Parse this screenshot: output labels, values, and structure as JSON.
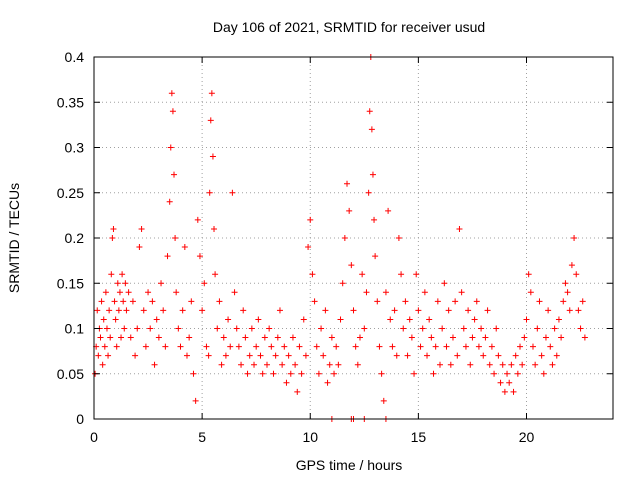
{
  "chart_data": {
    "type": "scatter",
    "title": "Day 106 of 2021, SRMTID for receiver usud",
    "xlabel": "GPS time / hours",
    "ylabel": "SRMTID / TECUs",
    "xlim": [
      0,
      24
    ],
    "ylim": [
      0,
      0.4
    ],
    "xticks": [
      0,
      5,
      10,
      15,
      20
    ],
    "xtick_labels": [
      "0",
      "5",
      "10",
      "15",
      "20"
    ],
    "yticks": [
      0,
      0.05,
      0.1,
      0.15,
      0.2,
      0.25,
      0.3,
      0.35,
      0.4
    ],
    "ytick_labels": [
      "0",
      "0.05",
      "0.1",
      "0.15",
      "0.2",
      "0.25",
      "0.3",
      "0.35",
      "0.4"
    ],
    "grid": true,
    "marker": "plus",
    "color": "#ff0000",
    "series": [
      {
        "name": "SRMTID",
        "x": [
          0.05,
          0.1,
          0.15,
          0.2,
          0.25,
          0.3,
          0.35,
          0.4,
          0.45,
          0.5,
          0.55,
          0.6,
          0.65,
          0.7,
          0.75,
          0.8,
          0.85,
          0.9,
          0.95,
          1.0,
          1.05,
          1.1,
          1.15,
          1.2,
          1.25,
          1.3,
          1.35,
          1.4,
          1.45,
          1.5,
          1.6,
          1.7,
          1.8,
          1.9,
          2.0,
          2.1,
          2.2,
          2.3,
          2.4,
          2.5,
          2.6,
          2.7,
          2.8,
          2.9,
          3.0,
          3.1,
          3.2,
          3.3,
          3.4,
          3.5,
          3.55,
          3.6,
          3.65,
          3.7,
          3.75,
          3.8,
          3.9,
          4.0,
          4.1,
          4.2,
          4.3,
          4.4,
          4.5,
          4.6,
          4.7,
          4.8,
          4.9,
          5.0,
          5.1,
          5.2,
          5.3,
          5.35,
          5.4,
          5.45,
          5.5,
          5.55,
          5.6,
          5.7,
          5.8,
          5.9,
          6.0,
          6.1,
          6.2,
          6.3,
          6.4,
          6.5,
          6.6,
          6.7,
          6.8,
          6.9,
          7.0,
          7.1,
          7.2,
          7.3,
          7.4,
          7.5,
          7.6,
          7.7,
          7.8,
          7.9,
          8.0,
          8.1,
          8.2,
          8.3,
          8.4,
          8.5,
          8.6,
          8.7,
          8.8,
          8.9,
          9.0,
          9.1,
          9.2,
          9.3,
          9.4,
          9.5,
          9.6,
          9.7,
          9.8,
          9.9,
          10.0,
          10.1,
          10.2,
          10.3,
          10.4,
          10.5,
          10.6,
          10.7,
          10.8,
          10.9,
          11.0,
          11.1,
          11.2,
          11.3,
          11.4,
          11.5,
          11.6,
          11.7,
          11.8,
          11.9,
          12.0,
          12.1,
          12.2,
          12.3,
          12.4,
          12.5,
          12.6,
          12.7,
          12.75,
          12.8,
          12.85,
          12.9,
          12.95,
          13.0,
          13.1,
          13.2,
          13.3,
          13.4,
          13.5,
          13.6,
          13.7,
          13.8,
          13.9,
          14.0,
          14.1,
          14.2,
          14.3,
          14.4,
          14.5,
          14.6,
          14.7,
          14.8,
          14.9,
          15.0,
          15.1,
          15.2,
          15.3,
          15.4,
          15.5,
          15.6,
          15.7,
          15.8,
          15.9,
          16.0,
          16.1,
          16.2,
          16.3,
          16.4,
          16.5,
          16.6,
          16.7,
          16.8,
          16.9,
          17.0,
          17.1,
          17.2,
          17.3,
          17.4,
          17.5,
          17.6,
          17.7,
          17.8,
          17.9,
          18.0,
          18.1,
          18.2,
          18.3,
          18.4,
          18.5,
          18.6,
          18.7,
          18.8,
          18.9,
          19.0,
          19.1,
          19.2,
          19.3,
          19.4,
          19.5,
          19.6,
          19.7,
          19.8,
          19.9,
          20.0,
          20.1,
          20.2,
          20.3,
          20.4,
          20.5,
          20.6,
          20.7,
          20.8,
          20.9,
          21.0,
          21.1,
          21.2,
          21.3,
          21.4,
          21.5,
          21.6,
          21.7,
          21.8,
          21.9,
          22.0,
          22.1,
          22.2,
          22.3,
          22.4,
          22.5,
          22.6,
          22.7,
          11.0,
          11.9,
          12.0,
          12.5,
          13.5
        ],
        "y": [
          0.05,
          0.08,
          0.12,
          0.07,
          0.1,
          0.09,
          0.13,
          0.06,
          0.11,
          0.08,
          0.14,
          0.1,
          0.07,
          0.12,
          0.09,
          0.16,
          0.2,
          0.21,
          0.13,
          0.11,
          0.08,
          0.15,
          0.12,
          0.14,
          0.09,
          0.16,
          0.13,
          0.1,
          0.15,
          0.12,
          0.14,
          0.09,
          0.13,
          0.07,
          0.1,
          0.19,
          0.21,
          0.12,
          0.08,
          0.14,
          0.1,
          0.13,
          0.06,
          0.11,
          0.09,
          0.15,
          0.12,
          0.08,
          0.18,
          0.24,
          0.3,
          0.36,
          0.34,
          0.27,
          0.2,
          0.14,
          0.1,
          0.08,
          0.12,
          0.19,
          0.07,
          0.09,
          0.13,
          0.05,
          0.02,
          0.22,
          0.18,
          0.12,
          0.15,
          0.08,
          0.07,
          0.25,
          0.33,
          0.36,
          0.29,
          0.21,
          0.16,
          0.1,
          0.13,
          0.06,
          0.09,
          0.07,
          0.11,
          0.08,
          0.25,
          0.14,
          0.1,
          0.08,
          0.06,
          0.12,
          0.09,
          0.05,
          0.07,
          0.1,
          0.06,
          0.08,
          0.11,
          0.07,
          0.05,
          0.09,
          0.06,
          0.1,
          0.08,
          0.05,
          0.07,
          0.09,
          0.12,
          0.06,
          0.08,
          0.04,
          0.07,
          0.05,
          0.09,
          0.06,
          0.03,
          0.08,
          0.05,
          0.11,
          0.07,
          0.19,
          0.22,
          0.16,
          0.13,
          0.08,
          0.05,
          0.1,
          0.07,
          0.12,
          0.04,
          0.06,
          0.09,
          0.05,
          0.08,
          0.06,
          0.11,
          0.15,
          0.2,
          0.26,
          0.23,
          0.17,
          0.12,
          0.08,
          0.06,
          0.09,
          0.16,
          0.1,
          0.14,
          0.25,
          0.34,
          0.4,
          0.32,
          0.27,
          0.22,
          0.18,
          0.13,
          0.08,
          0.05,
          0.02,
          0.14,
          0.23,
          0.11,
          0.08,
          0.12,
          0.07,
          0.2,
          0.16,
          0.1,
          0.13,
          0.07,
          0.11,
          0.09,
          0.05,
          0.16,
          0.12,
          0.08,
          0.1,
          0.14,
          0.07,
          0.11,
          0.09,
          0.05,
          0.08,
          0.13,
          0.06,
          0.1,
          0.15,
          0.08,
          0.12,
          0.06,
          0.09,
          0.13,
          0.07,
          0.21,
          0.14,
          0.1,
          0.08,
          0.12,
          0.06,
          0.09,
          0.11,
          0.13,
          0.08,
          0.1,
          0.07,
          0.09,
          0.12,
          0.06,
          0.08,
          0.05,
          0.1,
          0.07,
          0.04,
          0.06,
          0.03,
          0.05,
          0.04,
          0.06,
          0.03,
          0.07,
          0.05,
          0.08,
          0.06,
          0.09,
          0.11,
          0.16,
          0.14,
          0.08,
          0.06,
          0.1,
          0.13,
          0.07,
          0.05,
          0.09,
          0.12,
          0.08,
          0.06,
          0.1,
          0.07,
          0.11,
          0.09,
          0.13,
          0.15,
          0.14,
          0.12,
          0.17,
          0.2,
          0.16,
          0.12,
          0.1,
          0.13,
          0.09,
          0.0,
          0.0,
          0.0,
          0.0,
          0.0
        ]
      }
    ]
  }
}
